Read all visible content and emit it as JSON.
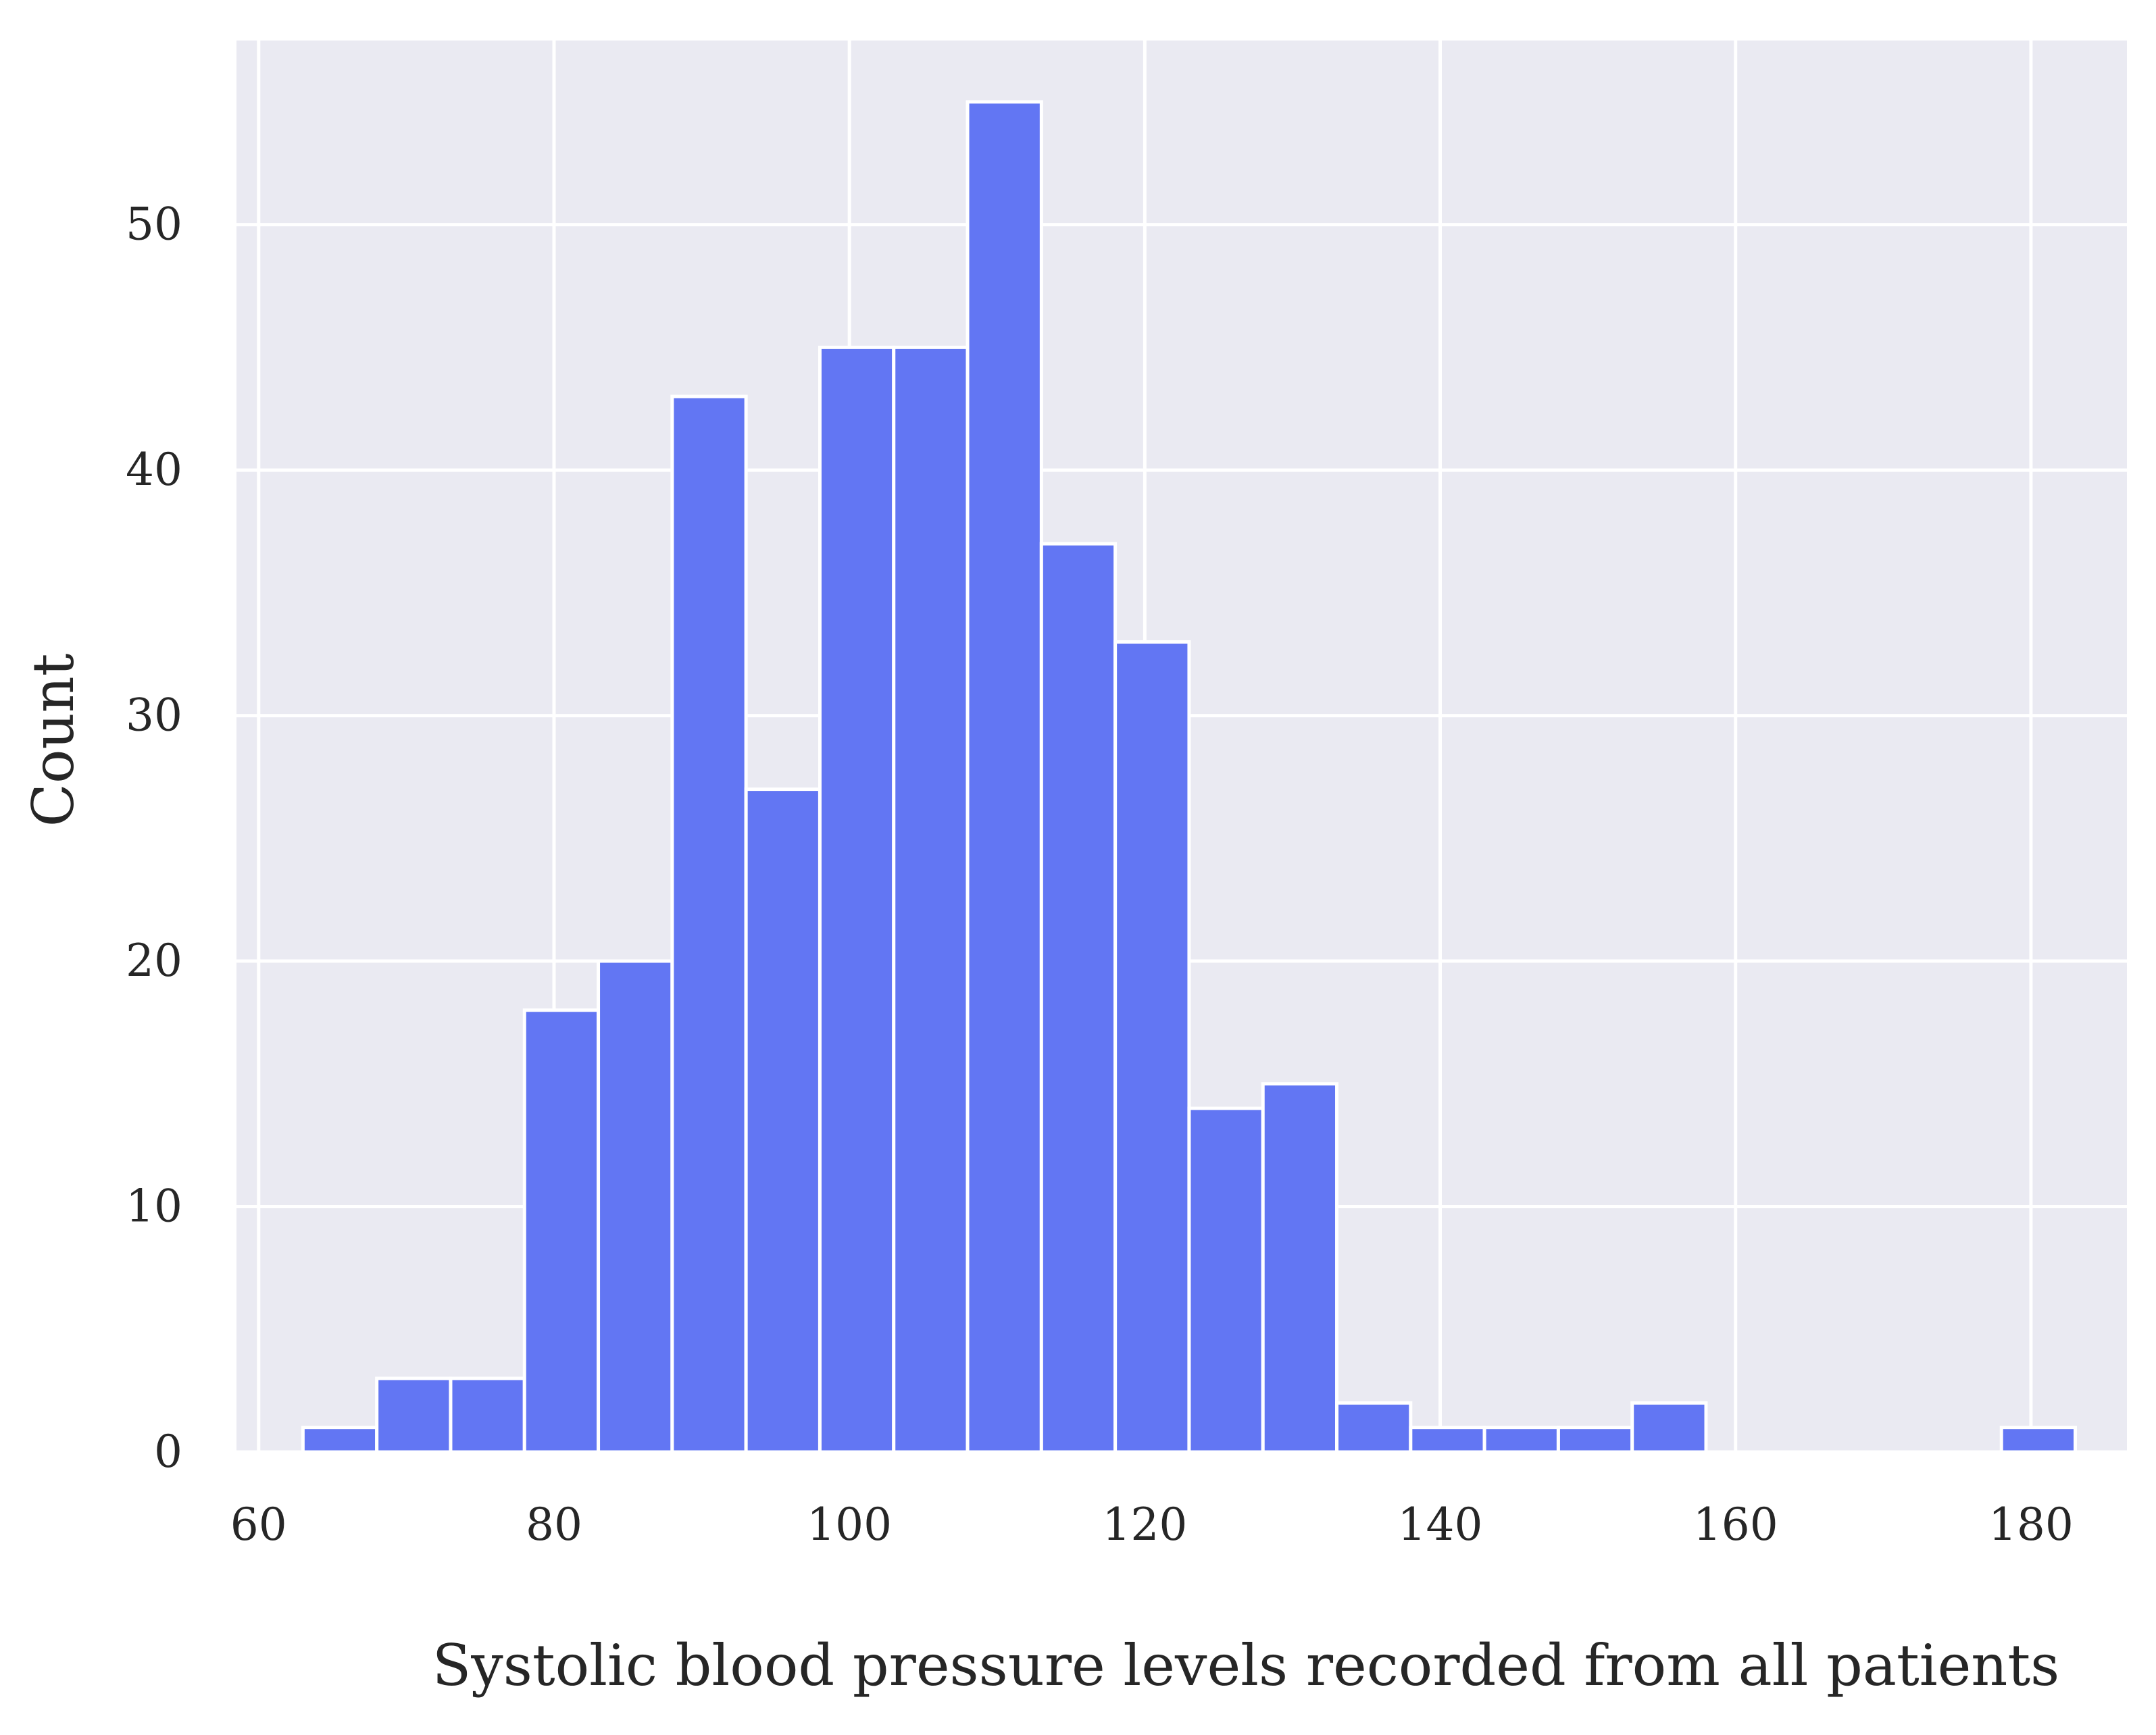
{
  "chart_data": {
    "type": "bar",
    "title": "",
    "xlabel": "Systolic blood pressure levels recorded from all patients",
    "ylabel": "Count",
    "xlim": [
      58.5,
      186.5
    ],
    "ylim": [
      0,
      57.5
    ],
    "xticks": [
      60,
      80,
      100,
      120,
      140,
      160,
      180
    ],
    "yticks": [
      0,
      10,
      20,
      30,
      40,
      50
    ],
    "grid": true,
    "bar_color": "#5F73F3",
    "background_color": "#EAEAF2",
    "grid_color": "#FFFFFF",
    "bin_edges": [
      63,
      68,
      73,
      78,
      83,
      88,
      93,
      98,
      103,
      108,
      113,
      118,
      123,
      128,
      133,
      138,
      143,
      148,
      153,
      158,
      163,
      168,
      173,
      178,
      183
    ],
    "values": [
      1,
      3,
      3,
      18,
      20,
      43,
      27,
      45,
      45,
      55,
      37,
      33,
      14,
      15,
      2,
      1,
      1,
      1,
      2,
      0,
      0,
      0,
      0,
      1
    ]
  }
}
